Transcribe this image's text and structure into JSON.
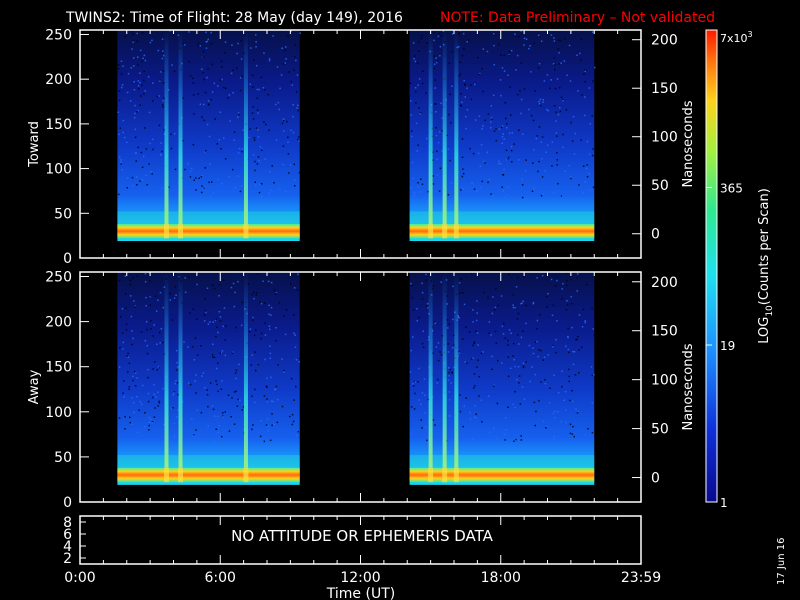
{
  "header": {
    "title": "TWINS2: Time of Flight: 28 May (day 149), 2016",
    "note": "NOTE: Data Preliminary – Not validated"
  },
  "side_date": "17 Jun 16",
  "colors": {
    "background": "#000000",
    "axes": "#ffffff",
    "note": "#ff0000"
  },
  "chart_data": [
    {
      "type": "heatmap",
      "name": "toward",
      "ylabel": "Toward",
      "y2label": "Nanoseconds",
      "ylim": [
        0,
        255
      ],
      "y2lim": [
        -25,
        210
      ],
      "yticks": [
        0,
        50,
        100,
        150,
        200,
        250
      ],
      "y2ticks": [
        0,
        50,
        100,
        150,
        200
      ],
      "data_windows_hours": [
        [
          1.6,
          9.4
        ],
        [
          14.1,
          22.0
        ]
      ],
      "peak_channel_range": [
        22,
        38
      ],
      "bright_streak_hours": [
        3.7,
        4.3,
        7.1,
        15.0,
        15.6,
        16.1
      ]
    },
    {
      "type": "heatmap",
      "name": "away",
      "ylabel": "Away",
      "y2label": "Nanoseconds",
      "ylim": [
        0,
        255
      ],
      "y2lim": [
        -25,
        210
      ],
      "yticks": [
        0,
        50,
        100,
        150,
        200,
        250
      ],
      "y2ticks": [
        0,
        50,
        100,
        150,
        200
      ],
      "data_windows_hours": [
        [
          1.6,
          9.4
        ],
        [
          14.1,
          22.0
        ]
      ],
      "peak_channel_range": [
        22,
        38
      ],
      "bright_streak_hours": [
        3.7,
        4.3,
        7.1,
        15.0,
        15.6,
        16.1
      ]
    }
  ],
  "ephemeris_panel": {
    "message": "NO ATTITUDE OR EPHEMERIS DATA",
    "yticks": [
      "8",
      "6",
      "4",
      "2"
    ]
  },
  "x_axis": {
    "label": "Time (UT)",
    "range_hours": [
      0,
      24
    ],
    "tick_labels": [
      "0:00",
      "6:00",
      "12:00",
      "18:00",
      "23:59"
    ],
    "tick_hours": [
      0,
      6,
      12,
      18,
      24
    ]
  },
  "colorbar": {
    "label": "LOG10(Counts per Scan)",
    "label_main": "LOG",
    "label_sub": "10",
    "label_rest": "(Counts per Scan)",
    "top_main": "7x10",
    "top_exp": "3",
    "tick_labels": [
      "1",
      "19",
      "365",
      "7x10^3"
    ],
    "tick_values": [
      1,
      19,
      365,
      7000
    ]
  }
}
